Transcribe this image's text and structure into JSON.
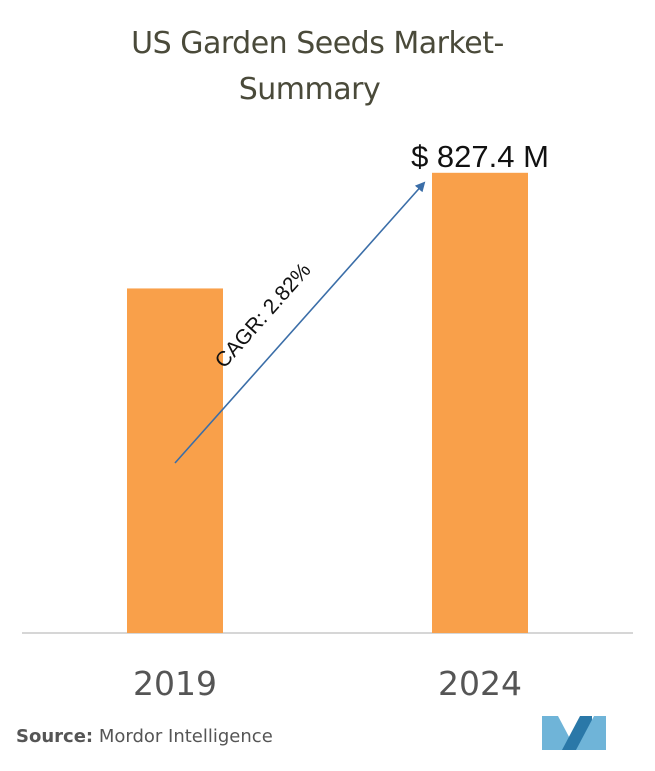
{
  "chart_data": {
    "type": "bar",
    "title_line1": "US Garden Seeds Market-",
    "title_line2": "Summary",
    "categories": [
      "2019",
      "2024"
    ],
    "values": [
      720.0,
      827.4
    ],
    "value_labels": [
      "",
      "$ 827.4 M"
    ],
    "unit": "USD Million",
    "ylim": [
      400,
      830
    ],
    "annotation": "CAGR: 2.82%",
    "source_label": "Source:",
    "source_text": "Mordor Intelligence",
    "colors": {
      "bar": "#f9a04a",
      "arrow": "#3b6ea8",
      "axis": "#c8c8c8",
      "logo_light": "#6fb4d8",
      "logo_dark": "#2a78a8"
    }
  }
}
